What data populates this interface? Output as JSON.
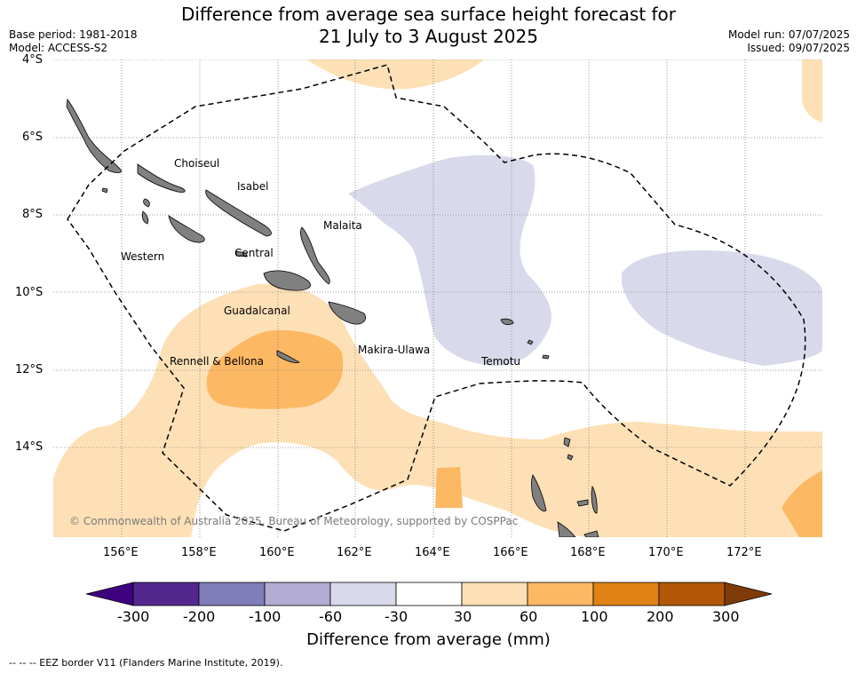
{
  "title": {
    "line1": "Difference from average sea surface height forecast for",
    "line2": "21 July to 3 August 2025"
  },
  "meta_left": {
    "base_period": "Base period: 1981-2018",
    "model": "Model: ACCESS-S2"
  },
  "meta_right": {
    "model_run": "Model run: 07/07/2025",
    "issued": "Issued: 09/07/2025"
  },
  "map": {
    "lat_labels": [
      "4°S",
      "6°S",
      "8°S",
      "10°S",
      "12°S",
      "14°S"
    ],
    "lon_labels": [
      "156°E",
      "158°E",
      "160°E",
      "162°E",
      "164°E",
      "166°E",
      "168°E",
      "170°E",
      "172°E"
    ],
    "places": [
      "Choiseul",
      "Isabel",
      "Malaita",
      "Western",
      "Central",
      "Guadalcanal",
      "Makira-Ulawa",
      "Rennell & Bellona",
      "Temotu"
    ],
    "copyright": "© Commonwealth of Australia 2025, Bureau of Meteorology, supported by COSPPac",
    "land_color": "#808080",
    "eez_line_style": "dashed"
  },
  "colorbar": {
    "ticks": [
      "-300",
      "-200",
      "-100",
      "-60",
      "-30",
      "30",
      "60",
      "100",
      "200",
      "300"
    ],
    "colors": [
      "#3f007d",
      "#54278f",
      "#807dba",
      "#b2abd2",
      "#d8daeb",
      "#ffffff",
      "#fee0b6",
      "#fdb863",
      "#e08214",
      "#b35806",
      "#7f3b08"
    ],
    "title": "Difference from average (mm)"
  },
  "eez_note": "--  --  -- EEZ border V11 (Flanders Marine Institute, 2019)."
}
